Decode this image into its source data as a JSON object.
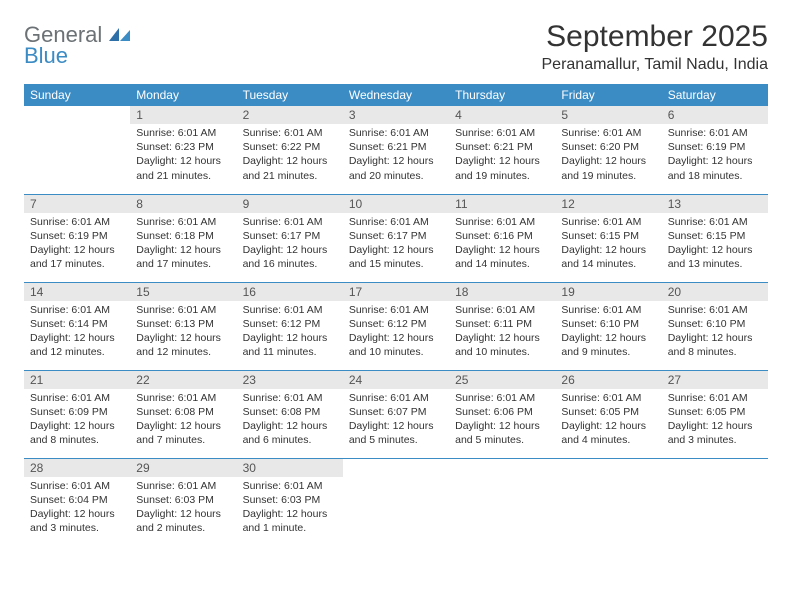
{
  "logo": {
    "general": "General",
    "blue": "Blue"
  },
  "title": "September 2025",
  "location": "Peranamallur, Tamil Nadu, India",
  "colors": {
    "header_bg": "#3b8bc4",
    "header_text": "#ffffff",
    "daynum_bg": "#e8e8e8",
    "border": "#3b8bc4",
    "text": "#333333",
    "logo_gray": "#6b7175",
    "logo_blue": "#3b8bc4"
  },
  "daysOfWeek": [
    "Sunday",
    "Monday",
    "Tuesday",
    "Wednesday",
    "Thursday",
    "Friday",
    "Saturday"
  ],
  "weeks": [
    [
      null,
      {
        "n": "1",
        "sunrise": "Sunrise: 6:01 AM",
        "sunset": "Sunset: 6:23 PM",
        "daylight": "Daylight: 12 hours and 21 minutes."
      },
      {
        "n": "2",
        "sunrise": "Sunrise: 6:01 AM",
        "sunset": "Sunset: 6:22 PM",
        "daylight": "Daylight: 12 hours and 21 minutes."
      },
      {
        "n": "3",
        "sunrise": "Sunrise: 6:01 AM",
        "sunset": "Sunset: 6:21 PM",
        "daylight": "Daylight: 12 hours and 20 minutes."
      },
      {
        "n": "4",
        "sunrise": "Sunrise: 6:01 AM",
        "sunset": "Sunset: 6:21 PM",
        "daylight": "Daylight: 12 hours and 19 minutes."
      },
      {
        "n": "5",
        "sunrise": "Sunrise: 6:01 AM",
        "sunset": "Sunset: 6:20 PM",
        "daylight": "Daylight: 12 hours and 19 minutes."
      },
      {
        "n": "6",
        "sunrise": "Sunrise: 6:01 AM",
        "sunset": "Sunset: 6:19 PM",
        "daylight": "Daylight: 12 hours and 18 minutes."
      }
    ],
    [
      {
        "n": "7",
        "sunrise": "Sunrise: 6:01 AM",
        "sunset": "Sunset: 6:19 PM",
        "daylight": "Daylight: 12 hours and 17 minutes."
      },
      {
        "n": "8",
        "sunrise": "Sunrise: 6:01 AM",
        "sunset": "Sunset: 6:18 PM",
        "daylight": "Daylight: 12 hours and 17 minutes."
      },
      {
        "n": "9",
        "sunrise": "Sunrise: 6:01 AM",
        "sunset": "Sunset: 6:17 PM",
        "daylight": "Daylight: 12 hours and 16 minutes."
      },
      {
        "n": "10",
        "sunrise": "Sunrise: 6:01 AM",
        "sunset": "Sunset: 6:17 PM",
        "daylight": "Daylight: 12 hours and 15 minutes."
      },
      {
        "n": "11",
        "sunrise": "Sunrise: 6:01 AM",
        "sunset": "Sunset: 6:16 PM",
        "daylight": "Daylight: 12 hours and 14 minutes."
      },
      {
        "n": "12",
        "sunrise": "Sunrise: 6:01 AM",
        "sunset": "Sunset: 6:15 PM",
        "daylight": "Daylight: 12 hours and 14 minutes."
      },
      {
        "n": "13",
        "sunrise": "Sunrise: 6:01 AM",
        "sunset": "Sunset: 6:15 PM",
        "daylight": "Daylight: 12 hours and 13 minutes."
      }
    ],
    [
      {
        "n": "14",
        "sunrise": "Sunrise: 6:01 AM",
        "sunset": "Sunset: 6:14 PM",
        "daylight": "Daylight: 12 hours and 12 minutes."
      },
      {
        "n": "15",
        "sunrise": "Sunrise: 6:01 AM",
        "sunset": "Sunset: 6:13 PM",
        "daylight": "Daylight: 12 hours and 12 minutes."
      },
      {
        "n": "16",
        "sunrise": "Sunrise: 6:01 AM",
        "sunset": "Sunset: 6:12 PM",
        "daylight": "Daylight: 12 hours and 11 minutes."
      },
      {
        "n": "17",
        "sunrise": "Sunrise: 6:01 AM",
        "sunset": "Sunset: 6:12 PM",
        "daylight": "Daylight: 12 hours and 10 minutes."
      },
      {
        "n": "18",
        "sunrise": "Sunrise: 6:01 AM",
        "sunset": "Sunset: 6:11 PM",
        "daylight": "Daylight: 12 hours and 10 minutes."
      },
      {
        "n": "19",
        "sunrise": "Sunrise: 6:01 AM",
        "sunset": "Sunset: 6:10 PM",
        "daylight": "Daylight: 12 hours and 9 minutes."
      },
      {
        "n": "20",
        "sunrise": "Sunrise: 6:01 AM",
        "sunset": "Sunset: 6:10 PM",
        "daylight": "Daylight: 12 hours and 8 minutes."
      }
    ],
    [
      {
        "n": "21",
        "sunrise": "Sunrise: 6:01 AM",
        "sunset": "Sunset: 6:09 PM",
        "daylight": "Daylight: 12 hours and 8 minutes."
      },
      {
        "n": "22",
        "sunrise": "Sunrise: 6:01 AM",
        "sunset": "Sunset: 6:08 PM",
        "daylight": "Daylight: 12 hours and 7 minutes."
      },
      {
        "n": "23",
        "sunrise": "Sunrise: 6:01 AM",
        "sunset": "Sunset: 6:08 PM",
        "daylight": "Daylight: 12 hours and 6 minutes."
      },
      {
        "n": "24",
        "sunrise": "Sunrise: 6:01 AM",
        "sunset": "Sunset: 6:07 PM",
        "daylight": "Daylight: 12 hours and 5 minutes."
      },
      {
        "n": "25",
        "sunrise": "Sunrise: 6:01 AM",
        "sunset": "Sunset: 6:06 PM",
        "daylight": "Daylight: 12 hours and 5 minutes."
      },
      {
        "n": "26",
        "sunrise": "Sunrise: 6:01 AM",
        "sunset": "Sunset: 6:05 PM",
        "daylight": "Daylight: 12 hours and 4 minutes."
      },
      {
        "n": "27",
        "sunrise": "Sunrise: 6:01 AM",
        "sunset": "Sunset: 6:05 PM",
        "daylight": "Daylight: 12 hours and 3 minutes."
      }
    ],
    [
      {
        "n": "28",
        "sunrise": "Sunrise: 6:01 AM",
        "sunset": "Sunset: 6:04 PM",
        "daylight": "Daylight: 12 hours and 3 minutes."
      },
      {
        "n": "29",
        "sunrise": "Sunrise: 6:01 AM",
        "sunset": "Sunset: 6:03 PM",
        "daylight": "Daylight: 12 hours and 2 minutes."
      },
      {
        "n": "30",
        "sunrise": "Sunrise: 6:01 AM",
        "sunset": "Sunset: 6:03 PM",
        "daylight": "Daylight: 12 hours and 1 minute."
      },
      null,
      null,
      null,
      null
    ]
  ]
}
